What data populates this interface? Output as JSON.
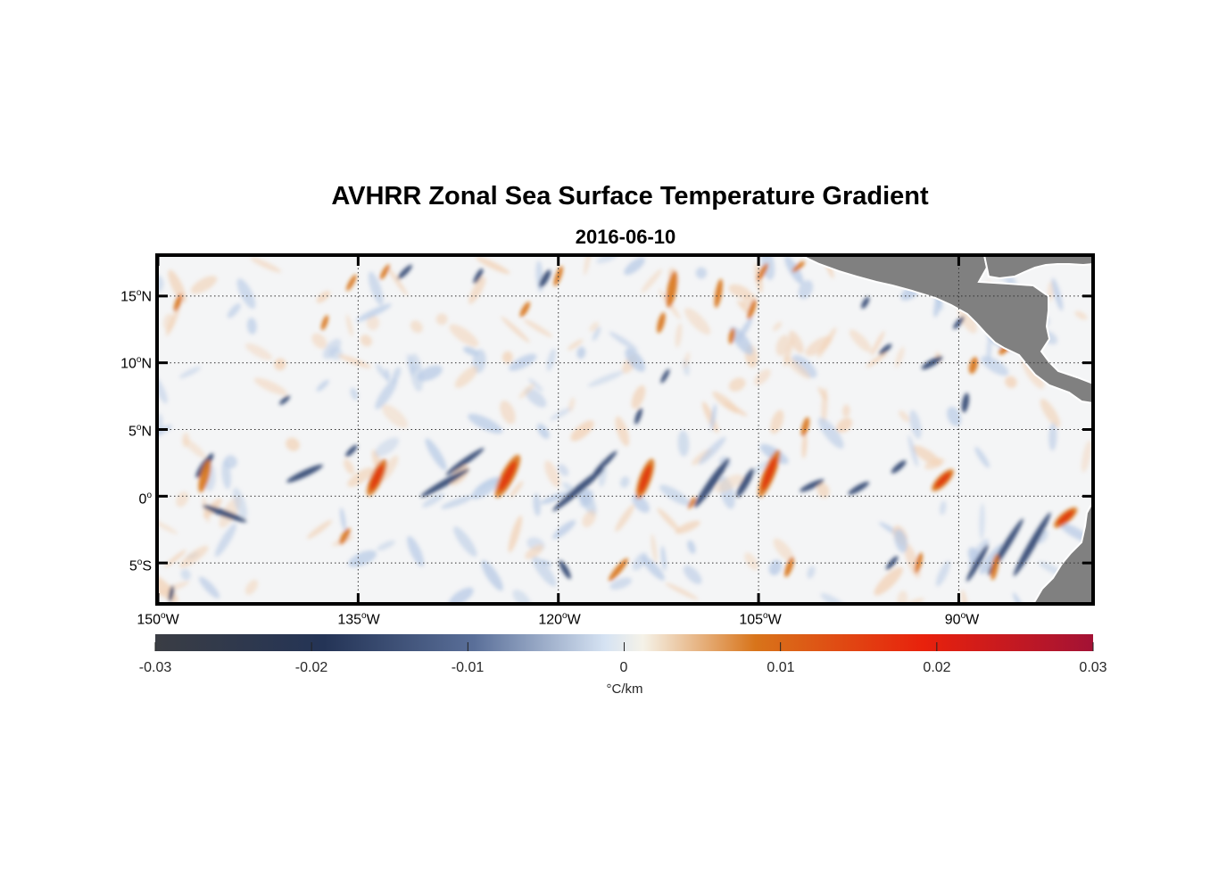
{
  "title": "AVHRR Zonal Sea Surface Temperature Gradient",
  "subtitle": "2016-06-10",
  "map": {
    "lon_range": [
      -150,
      -80
    ],
    "lat_range": [
      -8,
      18
    ],
    "gridlines": "dotted",
    "lat_ticks": [
      {
        "value": 15,
        "num": "15",
        "hemi": "N"
      },
      {
        "value": 10,
        "num": "10",
        "hemi": "N"
      },
      {
        "value": 5,
        "num": "5",
        "hemi": "N"
      },
      {
        "value": 0,
        "num": "0",
        "hemi": ""
      },
      {
        "value": -5,
        "num": "5",
        "hemi": "S"
      }
    ],
    "lon_ticks": [
      {
        "value": -150,
        "num": "150",
        "hemi": "W"
      },
      {
        "value": -135,
        "num": "135",
        "hemi": "W"
      },
      {
        "value": -120,
        "num": "120",
        "hemi": "W"
      },
      {
        "value": -105,
        "num": "105",
        "hemi": "W"
      },
      {
        "value": -90,
        "num": "90",
        "hemi": "W"
      }
    ],
    "degree_symbol": "o",
    "land_color": "#808080"
  },
  "colorbar": {
    "min": -0.03,
    "max": 0.03,
    "tick_labels": [
      "-0.03",
      "-0.02",
      "-0.01",
      "0",
      "0.01",
      "0.02",
      "0.03"
    ],
    "unit": "°C/km",
    "colors": [
      "#3a3d44",
      "#243456",
      "#5a6f99",
      "#d6e3f3",
      "#f5f2e8",
      "#d8741a",
      "#e8210c",
      "#a31235"
    ]
  },
  "features": [
    {
      "type": "neg",
      "lon": -146.5,
      "lat": 2.3,
      "len": 2.2,
      "wid": 0.55,
      "angle": 55
    },
    {
      "type": "pos",
      "lon": -146.5,
      "lat": 1.5,
      "len": 2.5,
      "wid": 0.7,
      "angle": 75
    },
    {
      "type": "neg",
      "lon": -145.0,
      "lat": -1.3,
      "len": 3.5,
      "wid": 0.5,
      "angle": -20
    },
    {
      "type": "neg",
      "lon": -139.0,
      "lat": 1.7,
      "len": 3.0,
      "wid": 0.5,
      "angle": 25
    },
    {
      "type": "neg",
      "lon": -135.5,
      "lat": 3.4,
      "len": 1.2,
      "wid": 0.4,
      "angle": 45
    },
    {
      "type": "pos",
      "lon": -133.6,
      "lat": 1.4,
      "len": 3.0,
      "wid": 0.9,
      "angle": 65
    },
    {
      "type": "neg",
      "lon": -128.5,
      "lat": 1.0,
      "len": 4.2,
      "wid": 0.5,
      "angle": 30
    },
    {
      "type": "neg",
      "lon": -127.0,
      "lat": 2.6,
      "len": 3.5,
      "wid": 0.45,
      "angle": 35
    },
    {
      "type": "pos",
      "lon": -123.8,
      "lat": 1.5,
      "len": 3.6,
      "wid": 1.0,
      "angle": 62
    },
    {
      "type": "neg",
      "lon": -118.5,
      "lat": 0.5,
      "len": 5.0,
      "wid": 0.55,
      "angle": 40
    },
    {
      "type": "neg",
      "lon": -116.5,
      "lat": 2.5,
      "len": 2.5,
      "wid": 0.4,
      "angle": 45
    },
    {
      "type": "pos",
      "lon": -113.5,
      "lat": 1.3,
      "len": 3.2,
      "wid": 0.9,
      "angle": 70
    },
    {
      "type": "neg",
      "lon": -108.5,
      "lat": 1.0,
      "len": 4.5,
      "wid": 0.6,
      "angle": 55
    },
    {
      "type": "neg",
      "lon": -106.0,
      "lat": 1.0,
      "len": 2.5,
      "wid": 0.55,
      "angle": 60
    },
    {
      "type": "pos",
      "lon": -104.2,
      "lat": 1.7,
      "len": 3.8,
      "wid": 0.9,
      "angle": 68
    },
    {
      "type": "neg",
      "lon": -101.0,
      "lat": 0.8,
      "len": 2.0,
      "wid": 0.45,
      "angle": 25
    },
    {
      "type": "neg",
      "lon": -97.5,
      "lat": 0.6,
      "len": 1.8,
      "wid": 0.45,
      "angle": 30
    },
    {
      "type": "neg",
      "lon": -94.5,
      "lat": 2.2,
      "len": 1.4,
      "wid": 0.45,
      "angle": 40
    },
    {
      "type": "pos",
      "lon": -91.2,
      "lat": 1.2,
      "len": 2.2,
      "wid": 0.8,
      "angle": 45
    },
    {
      "type": "neg",
      "lon": -89.5,
      "lat": 7.0,
      "len": 1.5,
      "wid": 0.5,
      "angle": 80
    },
    {
      "type": "neg",
      "lon": -92.0,
      "lat": 10.0,
      "len": 1.8,
      "wid": 0.5,
      "angle": 30
    },
    {
      "type": "pos",
      "lon": -88.9,
      "lat": 9.8,
      "len": 1.3,
      "wid": 0.6,
      "angle": 75
    },
    {
      "type": "pos",
      "lon": -86.5,
      "lat": 11.1,
      "len": 1.3,
      "wid": 0.55,
      "angle": 45
    },
    {
      "type": "neg",
      "lon": -86.3,
      "lat": 13.6,
      "len": 1.5,
      "wid": 0.45,
      "angle": 40
    },
    {
      "type": "neg",
      "lon": -84.5,
      "lat": -3.6,
      "len": 5.5,
      "wid": 0.55,
      "angle": 60
    },
    {
      "type": "neg",
      "lon": -86.5,
      "lat": -3.8,
      "len": 5.0,
      "wid": 0.5,
      "angle": 58
    },
    {
      "type": "neg",
      "lon": -88.6,
      "lat": -5.0,
      "len": 3.2,
      "wid": 0.45,
      "angle": 60
    },
    {
      "type": "pos",
      "lon": -82.0,
      "lat": -1.6,
      "len": 2.2,
      "wid": 0.8,
      "angle": 40
    },
    {
      "type": "pos",
      "lon": -87.3,
      "lat": -5.3,
      "len": 2.0,
      "wid": 0.5,
      "angle": 80
    },
    {
      "type": "pos",
      "lon": -93.0,
      "lat": -5.0,
      "len": 1.6,
      "wid": 0.45,
      "angle": 75
    },
    {
      "type": "pos",
      "lon": -102.7,
      "lat": -5.3,
      "len": 1.6,
      "wid": 0.5,
      "angle": 70
    },
    {
      "type": "pos",
      "lon": -115.5,
      "lat": -5.5,
      "len": 2.2,
      "wid": 0.5,
      "angle": 50
    },
    {
      "type": "pos",
      "lon": -136.0,
      "lat": -3.0,
      "len": 1.4,
      "wid": 0.5,
      "angle": 60
    },
    {
      "type": "neg",
      "lon": -119.5,
      "lat": -5.5,
      "len": 1.6,
      "wid": 0.45,
      "angle": -60
    },
    {
      "type": "pos",
      "lon": -111.5,
      "lat": 15.5,
      "len": 2.8,
      "wid": 0.7,
      "angle": 80
    },
    {
      "type": "pos",
      "lon": -112.3,
      "lat": 13.0,
      "len": 1.6,
      "wid": 0.5,
      "angle": 75
    },
    {
      "type": "pos",
      "lon": -108.0,
      "lat": 15.2,
      "len": 2.2,
      "wid": 0.5,
      "angle": 80
    },
    {
      "type": "pos",
      "lon": -105.5,
      "lat": 14.0,
      "len": 1.6,
      "wid": 0.45,
      "angle": 70
    },
    {
      "type": "pos",
      "lon": -104.7,
      "lat": 16.8,
      "len": 1.5,
      "wid": 0.45,
      "angle": 60
    },
    {
      "type": "pos",
      "lon": -102.0,
      "lat": 17.2,
      "len": 1.2,
      "wid": 0.4,
      "angle": 40
    },
    {
      "type": "pos",
      "lon": -107.0,
      "lat": 12.0,
      "len": 1.2,
      "wid": 0.45,
      "angle": 80
    },
    {
      "type": "pos",
      "lon": -133.0,
      "lat": 16.8,
      "len": 1.3,
      "wid": 0.4,
      "angle": 60
    },
    {
      "type": "pos",
      "lon": -135.5,
      "lat": 16.0,
      "len": 1.4,
      "wid": 0.4,
      "angle": 60
    },
    {
      "type": "pos",
      "lon": -148.5,
      "lat": 14.5,
      "len": 1.4,
      "wid": 0.45,
      "angle": 70
    },
    {
      "type": "pos",
      "lon": -122.5,
      "lat": 14.0,
      "len": 1.3,
      "wid": 0.45,
      "angle": 60
    },
    {
      "type": "pos",
      "lon": -120.0,
      "lat": 16.5,
      "len": 1.6,
      "wid": 0.45,
      "angle": 70
    },
    {
      "type": "pos",
      "lon": -101.5,
      "lat": 5.2,
      "len": 1.5,
      "wid": 0.5,
      "angle": 75
    },
    {
      "type": "pos",
      "lon": -137.5,
      "lat": 13.0,
      "len": 1.2,
      "wid": 0.4,
      "angle": 70
    },
    {
      "type": "neg",
      "lon": -121.0,
      "lat": 16.3,
      "len": 1.5,
      "wid": 0.5,
      "angle": 60
    },
    {
      "type": "neg",
      "lon": -131.5,
      "lat": 16.8,
      "len": 1.5,
      "wid": 0.4,
      "angle": 45
    },
    {
      "type": "neg",
      "lon": -126.0,
      "lat": 16.5,
      "len": 1.3,
      "wid": 0.4,
      "angle": 60
    },
    {
      "type": "neg",
      "lon": -114.0,
      "lat": 6.0,
      "len": 1.3,
      "wid": 0.4,
      "angle": 70
    },
    {
      "type": "neg",
      "lon": -97.0,
      "lat": 14.5,
      "len": 1.0,
      "wid": 0.4,
      "angle": 60
    },
    {
      "type": "neg",
      "lon": -95.5,
      "lat": 11.0,
      "len": 1.2,
      "wid": 0.4,
      "angle": 40
    },
    {
      "type": "neg",
      "lon": -90.0,
      "lat": 13.0,
      "len": 1.2,
      "wid": 0.4,
      "angle": 50
    },
    {
      "type": "neg",
      "lon": -149.0,
      "lat": -7.3,
      "len": 1.2,
      "wid": 0.35,
      "angle": 80
    },
    {
      "type": "neg",
      "lon": -112.0,
      "lat": 9.0,
      "len": 1.2,
      "wid": 0.35,
      "angle": 60
    },
    {
      "type": "neg",
      "lon": -140.5,
      "lat": 7.2,
      "len": 1.0,
      "wid": 0.35,
      "angle": 40
    },
    {
      "type": "pos",
      "lon": -110.0,
      "lat": -0.5,
      "len": 1.0,
      "wid": 0.35,
      "angle": 60
    },
    {
      "type": "neg",
      "lon": -95.0,
      "lat": -5.0,
      "len": 1.3,
      "wid": 0.4,
      "angle": 50
    }
  ]
}
